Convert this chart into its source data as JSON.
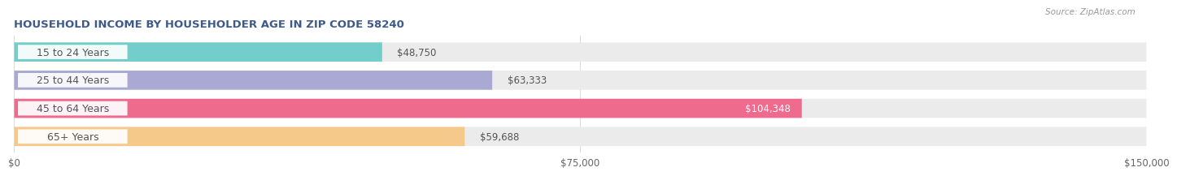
{
  "title": "HOUSEHOLD INCOME BY HOUSEHOLDER AGE IN ZIP CODE 58240",
  "source": "Source: ZipAtlas.com",
  "categories": [
    "15 to 24 Years",
    "25 to 44 Years",
    "45 to 64 Years",
    "65+ Years"
  ],
  "values": [
    48750,
    63333,
    104348,
    59688
  ],
  "bar_colors": [
    "#72ceca",
    "#a9a9d4",
    "#ef6b8e",
    "#f5c98a"
  ],
  "bar_bg_color": "#ebebeb",
  "bar_label_colors": [
    "#555555",
    "#555555",
    "#ffffff",
    "#555555"
  ],
  "xlim": [
    0,
    150000
  ],
  "xtick_values": [
    0,
    75000,
    150000
  ],
  "xtick_labels": [
    "$0",
    "$75,000",
    "$150,000"
  ],
  "title_color": "#3d5a8a",
  "source_color": "#999999",
  "label_fontsize": 8.5,
  "title_fontsize": 9.5,
  "bar_height": 0.68,
  "category_fontsize": 9.0,
  "value_fontsize": 8.5,
  "background_color": "#ffffff",
  "grid_color": "#dddddd",
  "category_text_color": "#555555"
}
